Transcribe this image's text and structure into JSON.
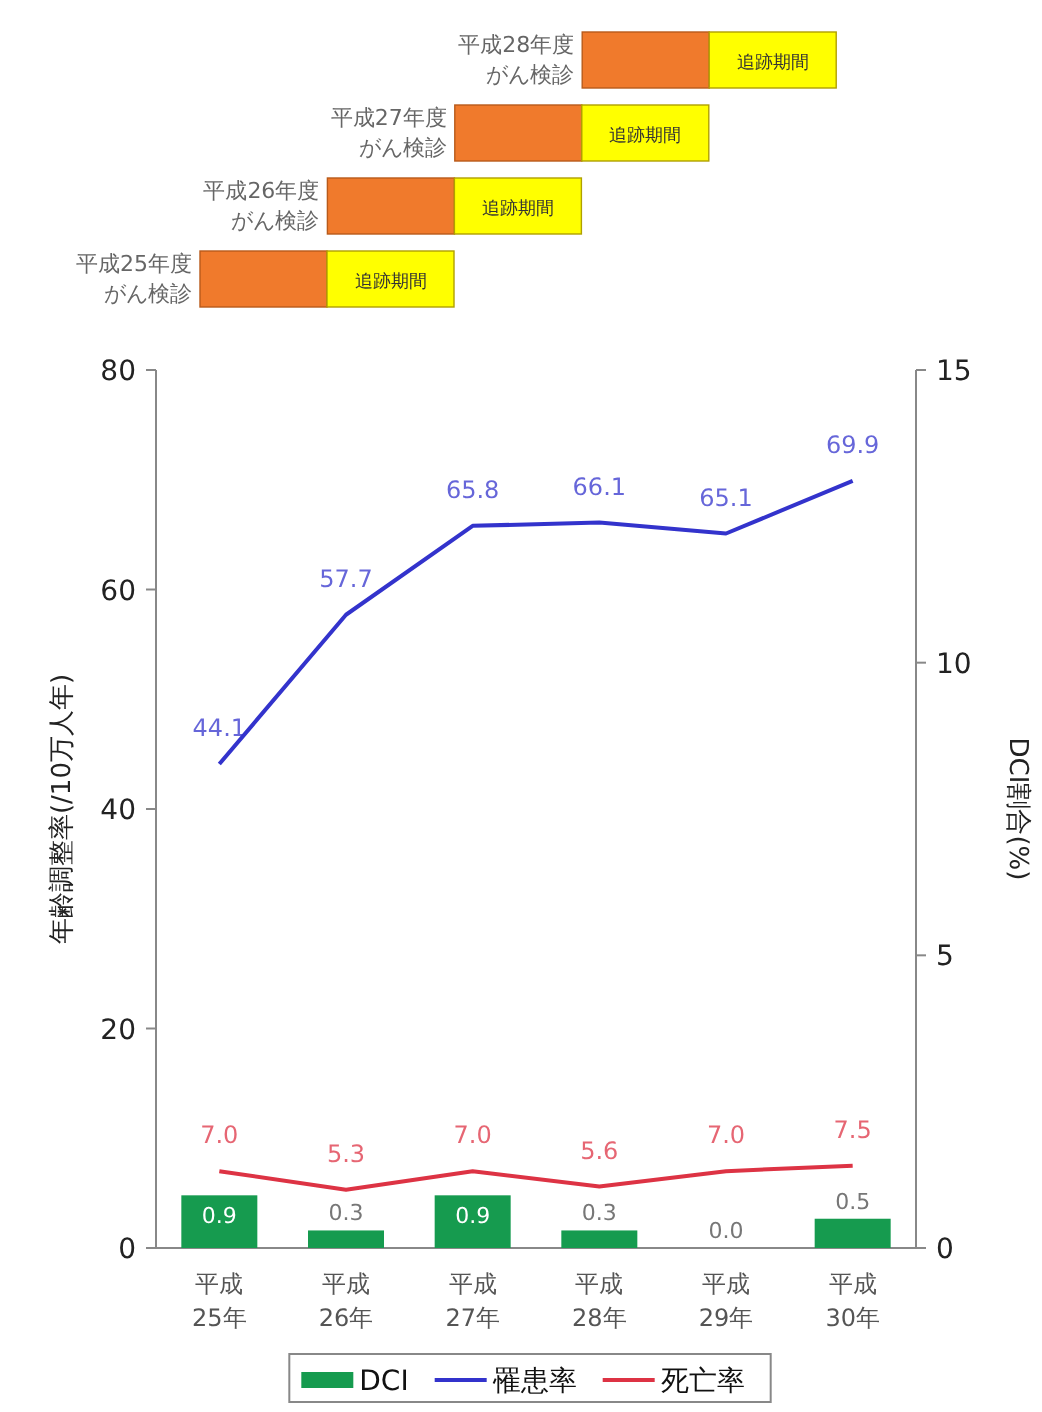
{
  "chart_data": {
    "type": "line",
    "categories": [
      "平成 25年",
      "平成 26年",
      "平成 27年",
      "平成 28年",
      "平成 29年",
      "平成 30年"
    ],
    "series": [
      {
        "name": "DCI",
        "type": "bar",
        "axis": "y2",
        "color": "#169b4f",
        "values": [
          0.9,
          0.3,
          0.9,
          0.3,
          0.0,
          0.5
        ],
        "value_labels": [
          "0.9",
          "0.3",
          "0.9",
          "0.3",
          "0.0",
          "0.5"
        ]
      },
      {
        "name": "罹患率",
        "color": "#3333cc",
        "values": [
          44.1,
          57.7,
          65.8,
          66.1,
          65.1,
          69.9
        ],
        "value_labels": [
          "44.1",
          "57.7",
          "65.8",
          "66.1",
          "65.1",
          "69.9"
        ]
      },
      {
        "name": "死亡率",
        "color": "#dd3344",
        "values": [
          7.0,
          5.3,
          7.0,
          5.6,
          7.0,
          7.5
        ],
        "value_labels": [
          "7.0",
          "5.3",
          "7.0",
          "5.6",
          "7.0",
          "7.5"
        ]
      }
    ],
    "ylabel": "年齢調整率(/10万人年)",
    "y2label": "DCI割合(%)",
    "ylim": [
      0,
      80
    ],
    "yticks": [
      0,
      20,
      40,
      60,
      80
    ],
    "y2lim": [
      0,
      15
    ],
    "y2ticks": [
      0,
      5,
      10,
      15
    ],
    "legend": "bottom",
    "grid": false,
    "annotations": [
      "平成28年度がん検診",
      "追跡期間",
      "平成27年度がん検診",
      "追跡期間",
      "平成26年度がん検診",
      "追跡期間",
      "平成25年度がん検診",
      "追跡期間"
    ]
  }
}
